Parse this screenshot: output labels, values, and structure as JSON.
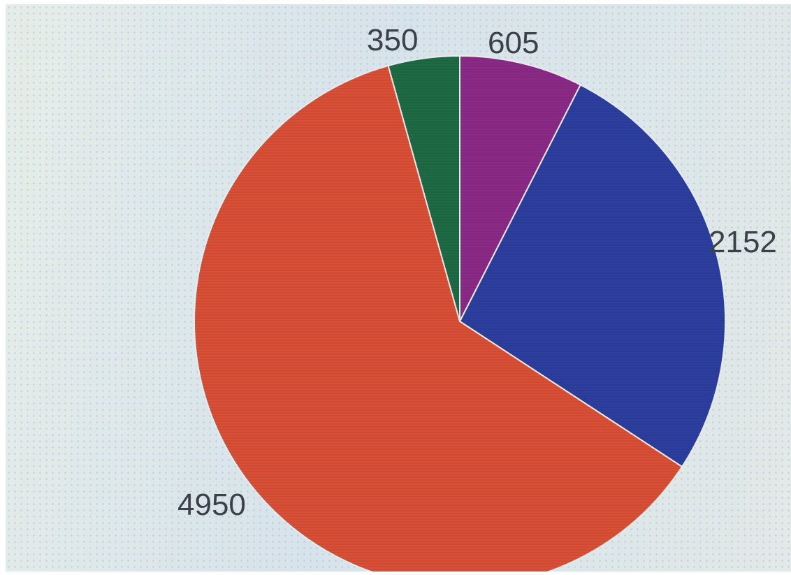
{
  "chart_data": {
    "type": "pie",
    "title": "",
    "start_angle_deg": 0,
    "direction": "clockwise",
    "slices": [
      {
        "value": 605,
        "label": "605",
        "color": "#8a2a86"
      },
      {
        "value": 2152,
        "label": "2152",
        "color": "#2d3f9e"
      },
      {
        "value": 4950,
        "label": "4950",
        "color": "#d95036"
      },
      {
        "value": 350,
        "label": "350",
        "color": "#1e6b45"
      }
    ]
  }
}
